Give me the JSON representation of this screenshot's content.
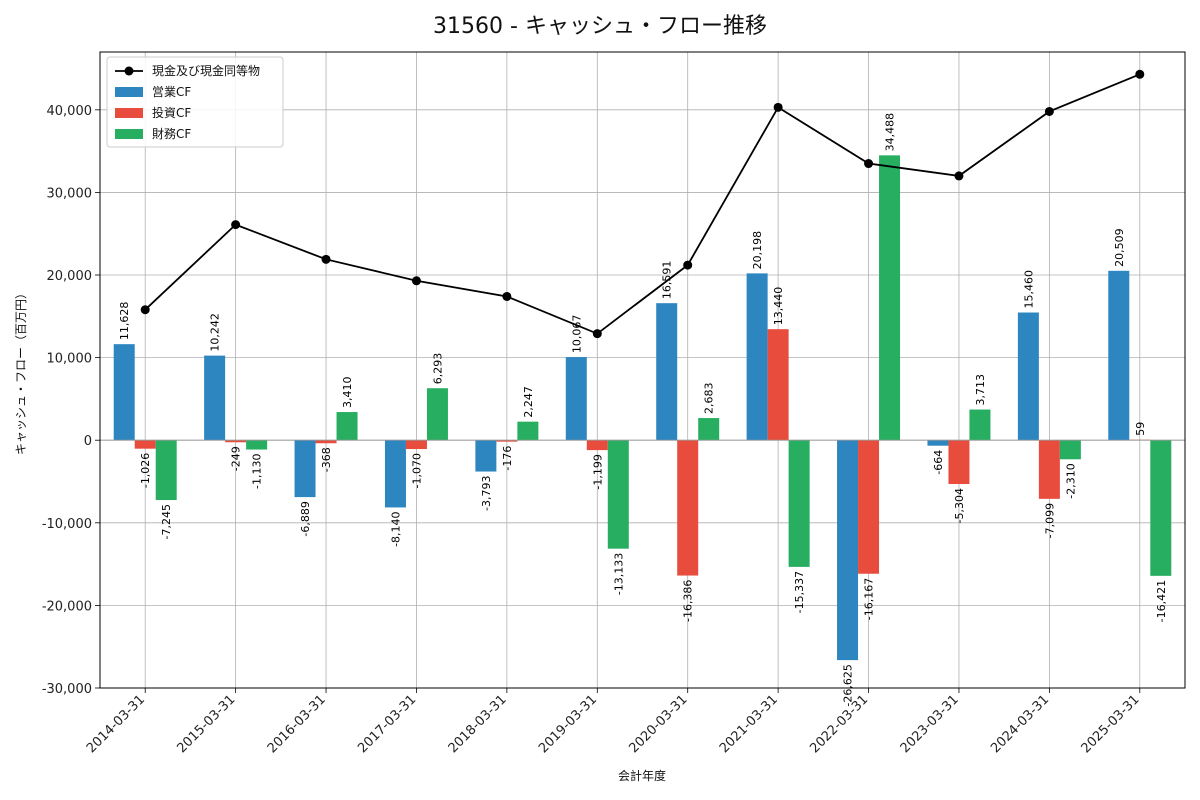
{
  "chart_data": {
    "type": "bar",
    "title": "31560 - キャッシュ・フロー推移",
    "xlabel": "会計年度",
    "ylabel": "キャッシュ・フロー（百万円）",
    "ylim": [
      -30000,
      47000
    ],
    "yticks": [
      -30000,
      -20000,
      -10000,
      0,
      10000,
      20000,
      30000,
      40000
    ],
    "ytick_labels": [
      "-30,000",
      "-20,000",
      "-10,000",
      "0",
      "10,000",
      "20,000",
      "30,000",
      "40,000"
    ],
    "grid": true,
    "legend_position": "top-left",
    "categories": [
      "2014-03-31",
      "2015-03-31",
      "2016-03-31",
      "2017-03-31",
      "2018-03-31",
      "2019-03-31",
      "2020-03-31",
      "2021-03-31",
      "2022-03-31",
      "2023-03-31",
      "2024-03-31",
      "2025-03-31"
    ],
    "series": [
      {
        "name": "営業CF",
        "kind": "bar",
        "color": "#2e86c1",
        "values": [
          11628,
          10242,
          -6889,
          -8140,
          -3793,
          10067,
          16591,
          20198,
          -26625,
          -664,
          15460,
          20509
        ],
        "labels": [
          "11,628",
          "10,242",
          "-6,889",
          "-8,140",
          "-3,793",
          "10,067",
          "16,591",
          "20,198",
          "-26,625",
          "-664",
          "15,460",
          "20,509"
        ]
      },
      {
        "name": "投資CF",
        "kind": "bar",
        "color": "#e74c3c",
        "values": [
          -1026,
          -249,
          -368,
          -1070,
          -176,
          -1199,
          -16386,
          13440,
          -16167,
          -5304,
          -7099,
          59
        ],
        "labels": [
          "-1,026",
          "-249",
          "-368",
          "-1,070",
          "-176",
          "-1,199",
          "-16,386",
          "13,440",
          "-16,167",
          "-5,304",
          "-7,099",
          "59"
        ]
      },
      {
        "name": "財務CF",
        "kind": "bar",
        "color": "#27ae60",
        "values": [
          -7245,
          -1130,
          3410,
          6293,
          2247,
          -13133,
          2683,
          -15337,
          34488,
          3713,
          -2310,
          -16421
        ],
        "labels": [
          "-7,245",
          "-1,130",
          "3,410",
          "6,293",
          "2,247",
          "-13,133",
          "2,683",
          "-15,337",
          "34,488",
          "3,713",
          "-2,310",
          "-16,421"
        ]
      },
      {
        "name": "現金及び現金同等物",
        "kind": "line",
        "color": "#000000",
        "values": [
          15800,
          26100,
          21900,
          19300,
          17400,
          12900,
          21200,
          40300,
          33500,
          32000,
          39800,
          44300
        ]
      }
    ]
  }
}
